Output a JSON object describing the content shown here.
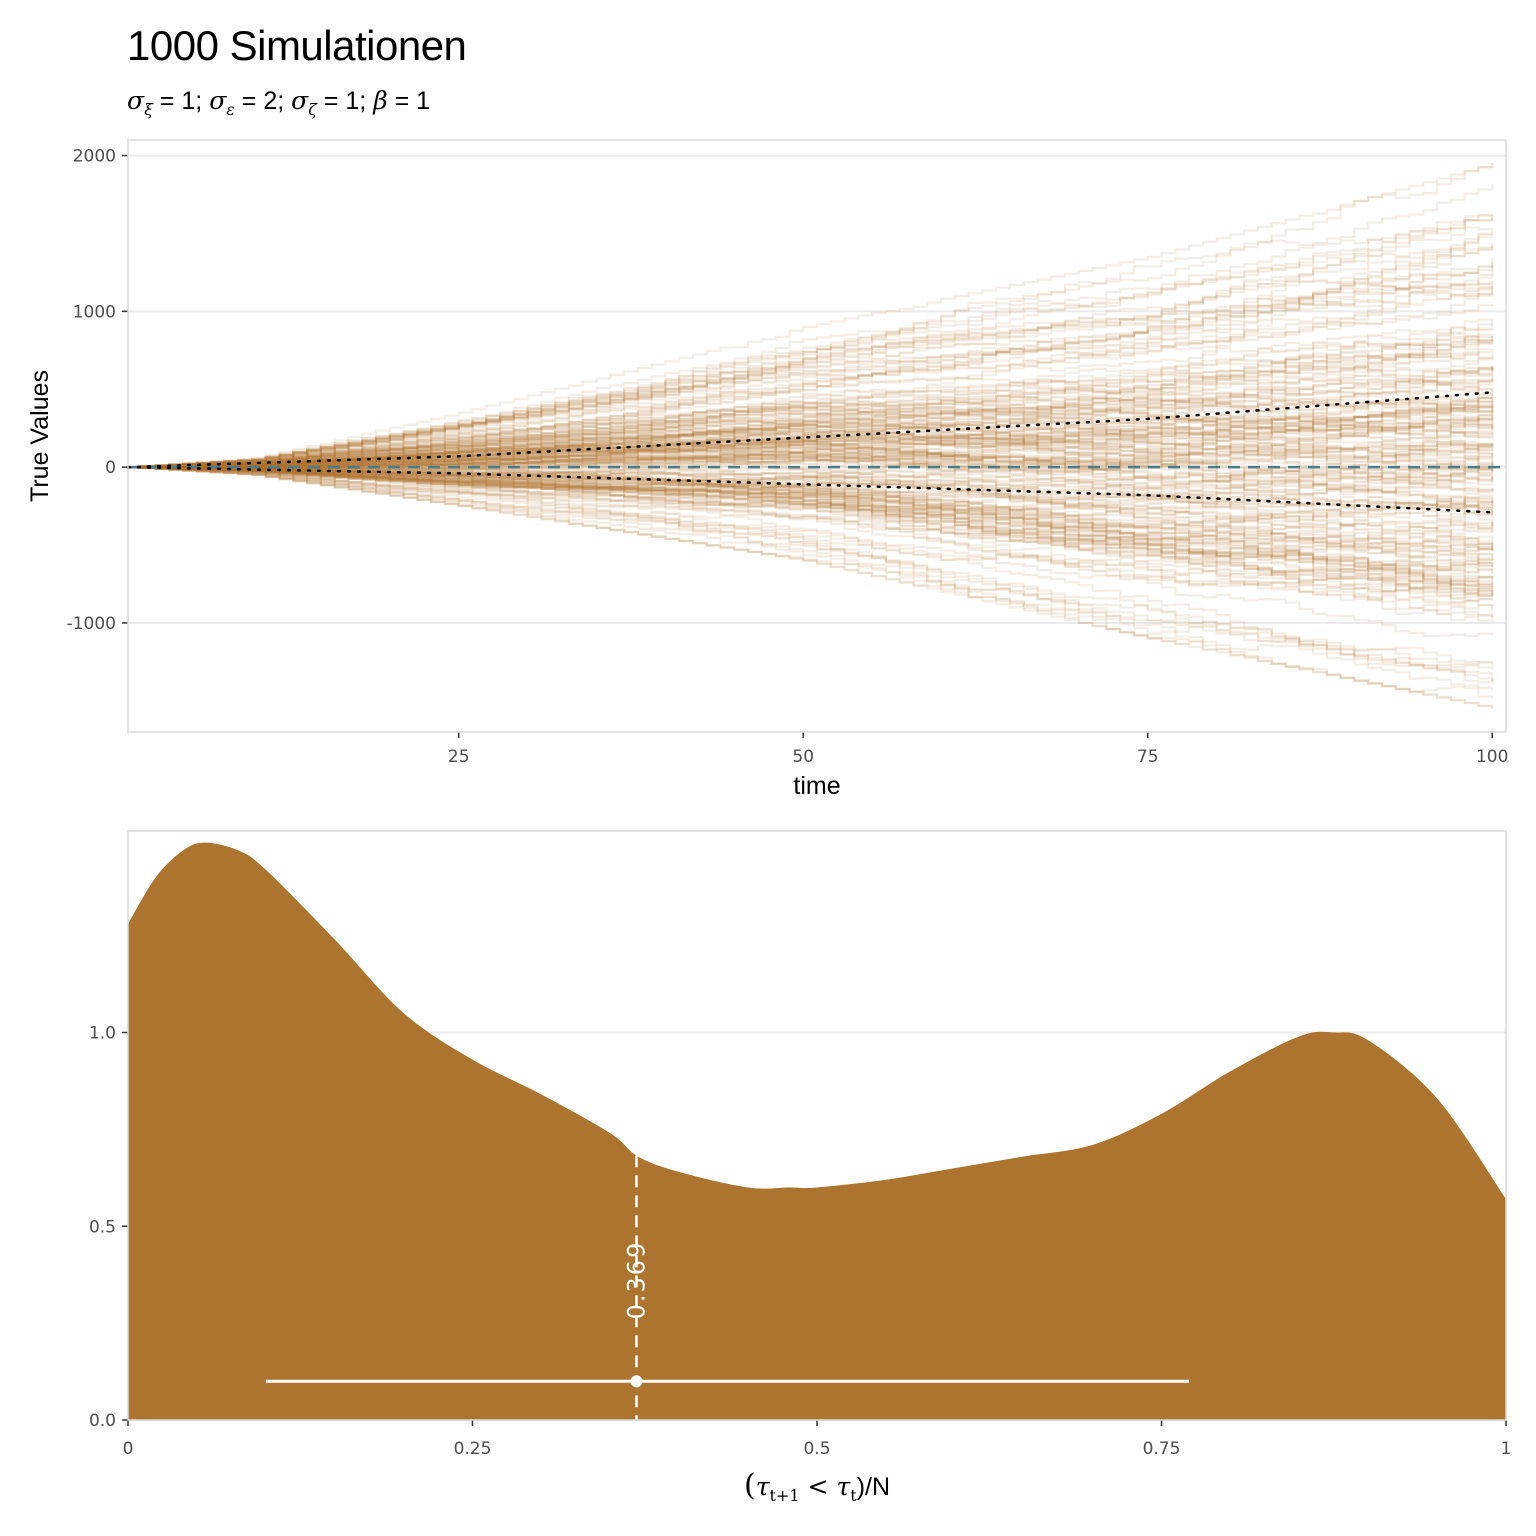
{
  "title": "1000 Simulationen",
  "subtitle": {
    "parts": [
      {
        "sym": "σ",
        "sub": "ξ",
        "text": " = 1;  "
      },
      {
        "sym": "σ",
        "sub": "ε",
        "text": " =  2;  "
      },
      {
        "sym": "σ",
        "sub": "ζ",
        "text": " = 1;  "
      },
      {
        "sym": "β",
        "sub": "",
        "text": " = 1"
      }
    ]
  },
  "colors": {
    "sim_line": "#b07430",
    "density_fill": "#ad742f",
    "zero_line": "#4a7d8c",
    "quantile_line": "#000000",
    "grid": "#ebebeb",
    "panel_border": "#d9d9d9",
    "annotation": "#ffffff"
  },
  "chart_data": [
    {
      "type": "line",
      "description_series": "simulated step paths fanning out from 0",
      "n_simulations": 1000,
      "xlabel": "time",
      "ylabel": "True Values",
      "xlim": [
        1,
        101
      ],
      "ylim": [
        -1700,
        2100
      ],
      "x_ticks": [
        25,
        50,
        75,
        100
      ],
      "x_tick_labels": [
        "25",
        "50",
        "75",
        "100"
      ],
      "y_ticks": [
        -1000,
        0,
        1000,
        2000
      ],
      "y_tick_labels": [
        "-1000",
        "0",
        "1000",
        "2000"
      ],
      "envelope": {
        "x": [
          1,
          10,
          25,
          50,
          75,
          100
        ],
        "max": [
          0,
          60,
          350,
          900,
          1350,
          1950
        ],
        "min": [
          0,
          -50,
          -250,
          -600,
          -1100,
          -1550
        ]
      },
      "reference_lines": [
        {
          "name": "zero",
          "y": 0,
          "style": "dashed"
        }
      ],
      "quantile_lines": [
        {
          "style": "dotted",
          "x": [
            1,
            25,
            50,
            75,
            100
          ],
          "y": [
            0,
            70,
            190,
            310,
            480
          ]
        },
        {
          "style": "dotted",
          "x": [
            1,
            25,
            50,
            75,
            100
          ],
          "y": [
            0,
            -40,
            -110,
            -180,
            -290
          ]
        }
      ],
      "grid": true
    },
    {
      "type": "area",
      "xlabel_parts": [
        "(",
        "τ",
        "t+1",
        " < ",
        "τ",
        "t",
        ")/N"
      ],
      "ylabel": "",
      "xlim": [
        0,
        1
      ],
      "ylim": [
        0,
        1.52
      ],
      "x_ticks": [
        0,
        0.25,
        0.5,
        0.75,
        1
      ],
      "x_tick_labels": [
        "0",
        "0.25",
        "0.5",
        "0.75",
        "1"
      ],
      "y_ticks": [
        0.0,
        0.5,
        1.0
      ],
      "y_tick_labels": [
        "0.0",
        "0.5",
        "1.0"
      ],
      "density": {
        "x": [
          0,
          0.02,
          0.04,
          0.056,
          0.08,
          0.1,
          0.15,
          0.2,
          0.25,
          0.3,
          0.35,
          0.37,
          0.4,
          0.45,
          0.48,
          0.5,
          0.55,
          0.6,
          0.65,
          0.7,
          0.75,
          0.8,
          0.85,
          0.875,
          0.9,
          0.95,
          1.0
        ],
        "y": [
          1.28,
          1.4,
          1.47,
          1.49,
          1.47,
          1.42,
          1.24,
          1.05,
          0.93,
          0.84,
          0.74,
          0.68,
          0.64,
          0.6,
          0.6,
          0.6,
          0.62,
          0.65,
          0.68,
          0.71,
          0.79,
          0.9,
          0.99,
          1.0,
          0.98,
          0.83,
          0.57
        ]
      },
      "median": 0.369,
      "median_label": "0.369",
      "interval": {
        "low": 0.1,
        "high": 0.77,
        "y": 0.1
      },
      "grid": true
    }
  ]
}
